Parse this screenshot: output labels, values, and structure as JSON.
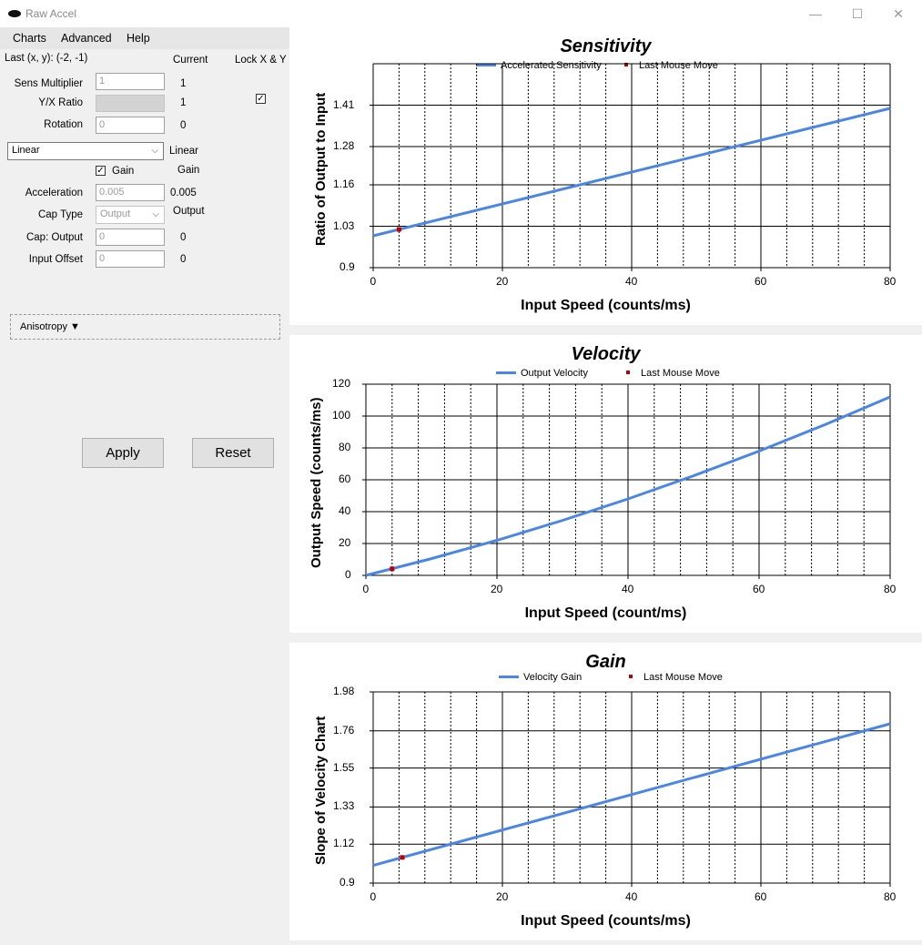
{
  "window": {
    "title": "Raw Accel",
    "minimize": "—",
    "maximize": "☐",
    "close": "✕"
  },
  "menu": [
    "Charts",
    "Advanced",
    "Help"
  ],
  "settings": {
    "last_xy": "Last (x, y): (-2, -1)",
    "current_header": "Current",
    "lock_header": "Lock X & Y",
    "sens_label": "Sens Multiplier",
    "sens_value": "1",
    "sens_current": "1",
    "yx_label": "Y/X Ratio",
    "yx_current": "1",
    "rotation_label": "Rotation",
    "rotation_value": "0",
    "rotation_current": "0",
    "accel_type": "Linear",
    "accel_type_current": "Linear",
    "gain_label": "Gain",
    "gain_current": "Gain",
    "acceleration_label": "Acceleration",
    "acceleration_value": "0.005",
    "acceleration_current": "0.005",
    "cap_type_label": "Cap Type",
    "cap_type_value": "Output",
    "cap_type_current": "Output",
    "cap_output_label": "Cap: Output",
    "cap_output_value": "0",
    "cap_output_current": "0",
    "input_offset_label": "Input Offset",
    "input_offset_value": "0",
    "input_offset_current": "0",
    "anisotropy": "Anisotropy ▼",
    "apply": "Apply",
    "reset": "Reset",
    "lock_checked": true,
    "gain_checked": true
  },
  "chart_data": [
    {
      "type": "line",
      "title": "Sensitivity",
      "xlabel": "Input Speed (counts/ms)",
      "ylabel": "Ratio of Output to Input",
      "xlim": [
        0,
        80
      ],
      "ylim": [
        0.9,
        1.54
      ],
      "x_ticks": [
        "0",
        "20",
        "40",
        "60",
        "80"
      ],
      "y_ticks": [
        "0.9",
        "1.03",
        "1.16",
        "1.28",
        "1.41"
      ],
      "y_tick_values": [
        0.9,
        1.03,
        1.16,
        1.28,
        1.41
      ],
      "legend": [
        "Accelerated Sensitivity",
        "Last Mouse Move"
      ],
      "series": [
        {
          "name": "Accelerated Sensitivity",
          "x": [
            0,
            80
          ],
          "y": [
            1.0,
            1.4
          ]
        }
      ],
      "last_move": {
        "x": 4,
        "y": 1.02
      },
      "color": "#4a86e8",
      "marker_color": "#c00000"
    },
    {
      "type": "line",
      "title": "Velocity",
      "xlabel": "Input Speed (count/ms)",
      "ylabel": "Output Speed (counts/ms)",
      "xlim": [
        0,
        80
      ],
      "ylim": [
        0,
        120
      ],
      "x_ticks": [
        "0",
        "20",
        "40",
        "60",
        "80"
      ],
      "y_ticks": [
        "0",
        "20",
        "40",
        "60",
        "80",
        "100",
        "120"
      ],
      "y_tick_values": [
        0,
        20,
        40,
        60,
        80,
        100,
        120
      ],
      "legend": [
        "Output Velocity",
        "Last Mouse Move"
      ],
      "series": [
        {
          "name": "Output Velocity",
          "x": [
            0,
            10,
            20,
            30,
            40,
            50,
            60,
            70,
            80
          ],
          "y": [
            0,
            10.5,
            22,
            34.5,
            48,
            62.5,
            78,
            94.5,
            112
          ]
        }
      ],
      "last_move": {
        "x": 4,
        "y": 4.1
      },
      "color": "#4a86e8",
      "marker_color": "#c00000"
    },
    {
      "type": "line",
      "title": "Gain",
      "xlabel": "Input Speed (counts/ms)",
      "ylabel": "Slope of Velocity Chart",
      "xlim": [
        0,
        80
      ],
      "ylim": [
        0.9,
        1.98
      ],
      "x_ticks": [
        "0",
        "20",
        "40",
        "60",
        "80"
      ],
      "y_ticks": [
        "0.9",
        "1.12",
        "1.33",
        "1.55",
        "1.76",
        "1.98"
      ],
      "y_tick_values": [
        0.9,
        1.12,
        1.33,
        1.55,
        1.76,
        1.98
      ],
      "legend": [
        "Velocity Gain",
        "Last Mouse Move"
      ],
      "series": [
        {
          "name": "Velocity Gain",
          "x": [
            0,
            80
          ],
          "y": [
            1.0,
            1.8
          ]
        }
      ],
      "last_move": {
        "x": 4.5,
        "y": 1.045
      },
      "color": "#4a86e8",
      "marker_color": "#c00000"
    }
  ]
}
